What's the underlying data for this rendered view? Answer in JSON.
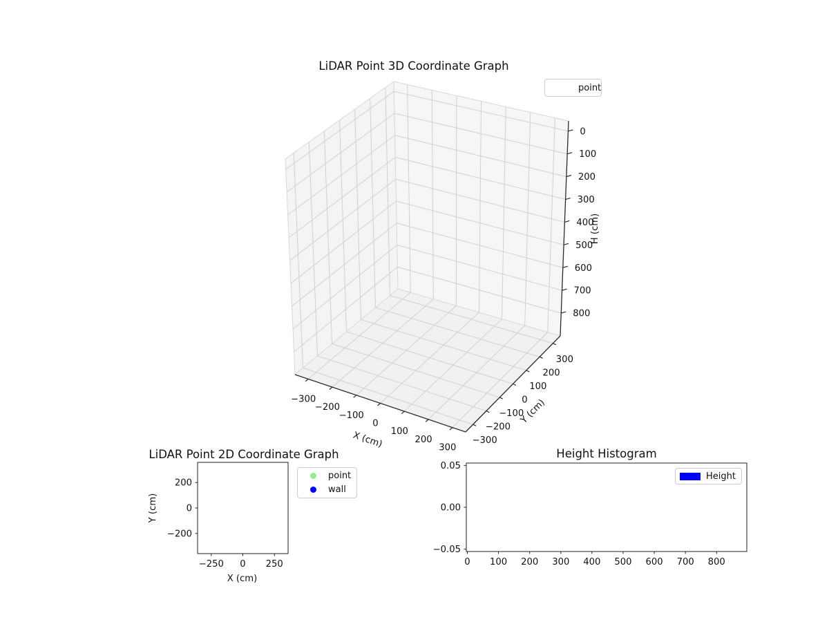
{
  "chart_data": [
    {
      "id": "lidar-3d",
      "type": "scatter3d",
      "title": "LiDAR Point 3D Coordinate Graph",
      "xlabel": "X (cm)",
      "ylabel": "Y (cm)",
      "zlabel": "H (cm)",
      "xlim": [
        -355,
        355
      ],
      "ylim": [
        -355,
        355
      ],
      "zlim": [
        -45,
        900
      ],
      "zaxis_inverted": true,
      "grid": true,
      "x_ticks": [
        {
          "v": -300,
          "label": "−300"
        },
        {
          "v": -200,
          "label": "−200"
        },
        {
          "v": -100,
          "label": "−100"
        },
        {
          "v": 0,
          "label": "0"
        },
        {
          "v": 100,
          "label": "100"
        },
        {
          "v": 200,
          "label": "200"
        },
        {
          "v": 300,
          "label": "300"
        }
      ],
      "y_ticks": [
        {
          "v": -300,
          "label": "−300"
        },
        {
          "v": -200,
          "label": "−200"
        },
        {
          "v": -100,
          "label": "−100"
        },
        {
          "v": 0,
          "label": "0"
        },
        {
          "v": 100,
          "label": "100"
        },
        {
          "v": 200,
          "label": "200"
        },
        {
          "v": 300,
          "label": "300"
        }
      ],
      "z_ticks": [
        {
          "v": 0,
          "label": "0"
        },
        {
          "v": 100,
          "label": "100"
        },
        {
          "v": 200,
          "label": "200"
        },
        {
          "v": 300,
          "label": "300"
        },
        {
          "v": 400,
          "label": "400"
        },
        {
          "v": 500,
          "label": "500"
        },
        {
          "v": 600,
          "label": "600"
        },
        {
          "v": 700,
          "label": "700"
        },
        {
          "v": 800,
          "label": "800"
        }
      ],
      "legend": [
        {
          "label": "point",
          "marker": "none"
        }
      ],
      "legend_position": "upper right",
      "series": [
        {
          "name": "point",
          "points": []
        }
      ]
    },
    {
      "id": "lidar-2d",
      "type": "scatter",
      "title": "LiDAR Point 2D Coordinate Graph",
      "xlabel": "X (cm)",
      "ylabel": "Y (cm)",
      "xlim": [
        -358,
        358
      ],
      "ylim": [
        -358,
        358
      ],
      "grid": false,
      "x_ticks": [
        {
          "v": -250,
          "label": "−250"
        },
        {
          "v": 0,
          "label": "0"
        },
        {
          "v": 250,
          "label": "250"
        }
      ],
      "y_ticks": [
        {
          "v": 200,
          "label": "200"
        },
        {
          "v": 0,
          "label": "0"
        },
        {
          "v": -200,
          "label": "−200"
        }
      ],
      "legend": [
        {
          "label": "point",
          "marker": "circle",
          "color": "#90ee90"
        },
        {
          "label": "wall",
          "marker": "circle",
          "color": "#0000ff"
        }
      ],
      "legend_position": "outside right",
      "series": [
        {
          "name": "point",
          "color": "#90ee90",
          "points": []
        },
        {
          "name": "wall",
          "color": "#0000ff",
          "points": []
        }
      ]
    },
    {
      "id": "height-histogram",
      "type": "bar",
      "title": "Height Histogram",
      "xlabel": "",
      "ylabel": "",
      "xlim": [
        -3.3,
        897
      ],
      "ylim": [
        -0.0528,
        0.0528
      ],
      "grid": false,
      "x_ticks": [
        {
          "v": 0,
          "label": "0"
        },
        {
          "v": 100,
          "label": "100"
        },
        {
          "v": 200,
          "label": "200"
        },
        {
          "v": 300,
          "label": "300"
        },
        {
          "v": 400,
          "label": "400"
        },
        {
          "v": 500,
          "label": "500"
        },
        {
          "v": 600,
          "label": "600"
        },
        {
          "v": 700,
          "label": "700"
        },
        {
          "v": 800,
          "label": "800"
        }
      ],
      "y_ticks": [
        {
          "v": 0.05,
          "label": "0.05"
        },
        {
          "v": 0,
          "label": "0.00"
        },
        {
          "v": -0.05,
          "label": "−0.05"
        }
      ],
      "legend": [
        {
          "label": "Height",
          "marker": "rect",
          "color": "#0000ff"
        }
      ],
      "legend_position": "upper right",
      "values": []
    }
  ]
}
